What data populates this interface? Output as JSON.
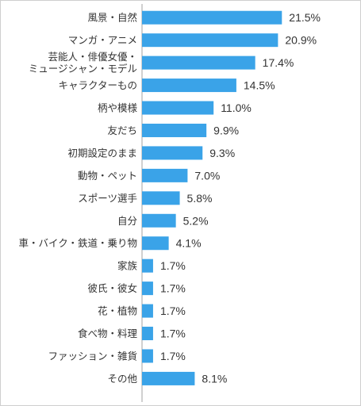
{
  "chart_data": {
    "type": "bar",
    "orientation": "horizontal",
    "title": "",
    "xlabel": "",
    "ylabel": "",
    "xlim": [
      0,
      22.5
    ],
    "grid": false,
    "legend": "none",
    "bar_color": "#3aa3e8",
    "categories": [
      [
        "風景・自然"
      ],
      [
        "マンガ・アニメ"
      ],
      [
        "芸能人・俳優女優・",
        "ミュージシャン・モデル"
      ],
      [
        "キャラクターもの"
      ],
      [
        "柄や模様"
      ],
      [
        "友だち"
      ],
      [
        "初期設定のまま"
      ],
      [
        "動物・ペット"
      ],
      [
        "スポーツ選手"
      ],
      [
        "自分"
      ],
      [
        "車・バイク・鉄道・乗り物"
      ],
      [
        "家族"
      ],
      [
        "彼氏・彼女"
      ],
      [
        "花・植物"
      ],
      [
        "食べ物・料理"
      ],
      [
        "ファッション・雑貨"
      ],
      [
        "その他"
      ]
    ],
    "values": [
      21.5,
      20.9,
      17.4,
      14.5,
      11.0,
      9.9,
      9.3,
      7.0,
      5.8,
      5.2,
      4.1,
      1.7,
      1.7,
      1.7,
      1.7,
      1.7,
      8.1
    ],
    "value_labels": [
      "21.5%",
      "20.9%",
      "17.4%",
      "14.5%",
      "11.0%",
      "9.9%",
      "9.3%",
      "7.0%",
      "5.8%",
      "5.2%",
      "4.1%",
      "1.7%",
      "1.7%",
      "1.7%",
      "1.7%",
      "1.7%",
      "8.1%"
    ]
  }
}
